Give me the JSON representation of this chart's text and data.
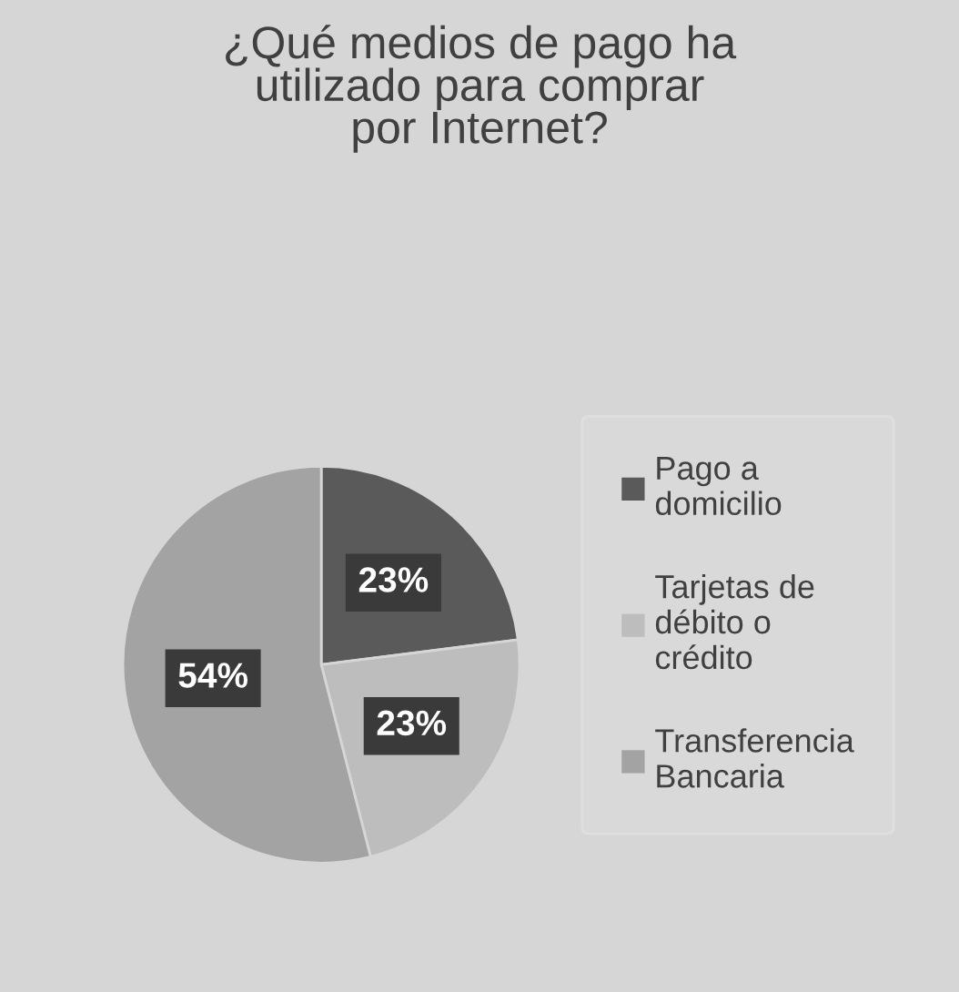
{
  "chart_data": {
    "type": "pie",
    "title": "¿Qué medios de pago ha utilizado para comprar por Internet?",
    "categories": [
      "Pago a domicilio",
      "Tarjetas de débito o crédito",
      "Transferencia Bancaria"
    ],
    "values": [
      23,
      23,
      54
    ],
    "colors": [
      "#5a5a5a",
      "#bdbdbd",
      "#a3a3a3"
    ],
    "value_labels": [
      "23%",
      "23%",
      "54%"
    ],
    "legend": "right"
  }
}
